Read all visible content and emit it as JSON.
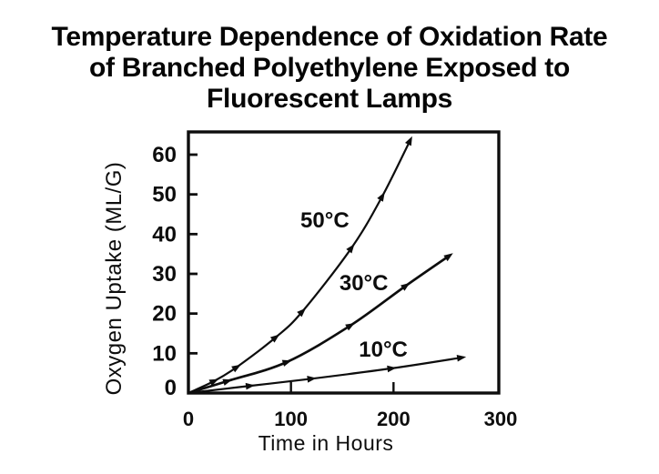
{
  "page": {
    "background": "#ffffff",
    "ink_color": "#0d0d0d"
  },
  "title": {
    "line1": "Temperature Dependence of Oxidation Rate",
    "line2": "of Branched Polyethylene Exposed to",
    "line3": "Fluorescent Lamps"
  },
  "chart_data": {
    "type": "line",
    "title": "Temperature Dependence of Oxidation Rate of Branched Polyethylene Exposed to Fluorescent Lamps",
    "xlabel": "Time in Hours",
    "ylabel": "Oxygen Uptake (ML/G)",
    "xlim": [
      0,
      300
    ],
    "ylim": [
      0,
      60
    ],
    "xticks": [
      0,
      100,
      200,
      300
    ],
    "yticks": [
      0,
      10,
      20,
      30,
      40,
      50,
      60
    ],
    "grid": false,
    "legend_position": "inline-labels",
    "line_color": "#0d0d0d",
    "marker": "arrowhead",
    "series": [
      {
        "name": "50°C",
        "label_x": 133,
        "label_y": 43.5,
        "x": [
          0,
          25,
          47,
          85,
          111,
          159,
          189,
          216
        ],
        "y": [
          0,
          3,
          6.5,
          14,
          20.5,
          36.5,
          49.5,
          63.5
        ]
      },
      {
        "name": "30°C",
        "label_x": 171,
        "label_y": 27.7,
        "x": [
          0,
          38,
          96,
          158,
          212,
          254
        ],
        "y": [
          0,
          3,
          7.8,
          17,
          27,
          34.5
        ]
      },
      {
        "name": "10°C",
        "label_x": 190,
        "label_y": 11,
        "x": [
          0,
          60,
          120,
          198,
          266
        ],
        "y": [
          0,
          1.8,
          3.6,
          6.2,
          8.9
        ]
      }
    ]
  }
}
